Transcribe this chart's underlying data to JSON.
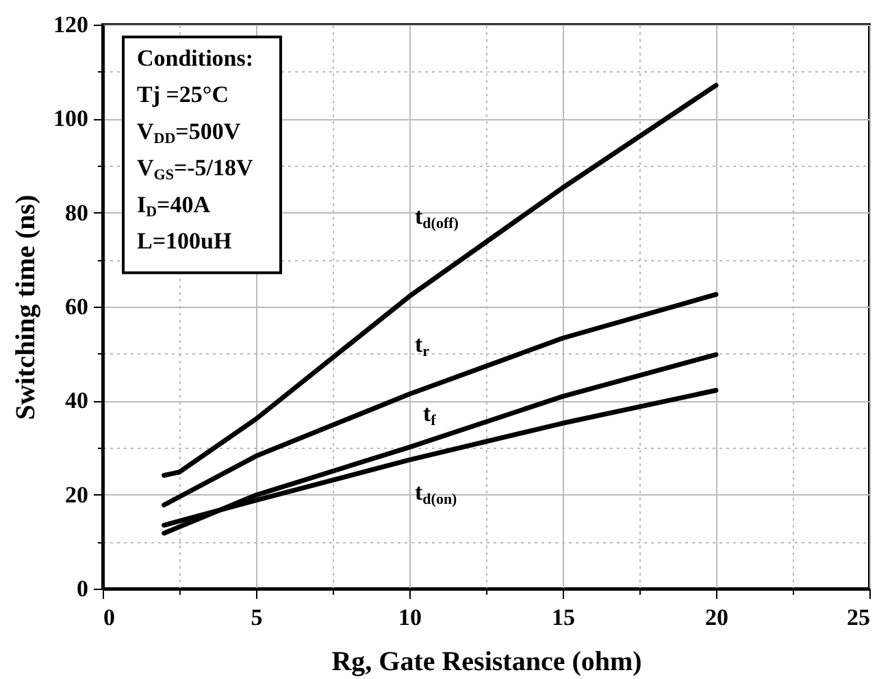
{
  "chart_data": {
    "type": "line",
    "xlabel": "Rg, Gate Resistance (ohm)",
    "ylabel": "Switching time (ns)",
    "x": [
      2,
      2.5,
      5,
      10,
      15,
      20
    ],
    "series": [
      {
        "name": "t$_{d(off)}$",
        "color": "#000000",
        "values": [
          24.1,
          24.8,
          36.1,
          62.2,
          85.3,
          107.1
        ]
      },
      {
        "name": "t$_{r}$",
        "color": "#000000",
        "x": [
          2,
          5,
          10,
          15,
          20
        ],
        "values": [
          17.8,
          28.2,
          41.4,
          53.3,
          62.6
        ]
      },
      {
        "name": "t$_{f}$",
        "color": "#000000",
        "x": [
          2,
          5,
          10,
          15,
          20
        ],
        "values": [
          11.8,
          19.9,
          30.1,
          40.9,
          49.8
        ]
      },
      {
        "name": "t$_{d(on)}$",
        "color": "#000000",
        "x": [
          2,
          5,
          10,
          15,
          20
        ],
        "values": [
          13.5,
          18.8,
          27.4,
          35.2,
          42.2
        ]
      }
    ],
    "xlim": [
      0,
      25
    ],
    "ylim": [
      0,
      120
    ],
    "xticks": [
      0,
      {
        "value": 2.5,
        "label": null
      },
      5,
      {
        "value": 7.5,
        "label": null
      },
      10,
      {
        "value": 12.5,
        "label": null
      },
      15,
      {
        "value": 17.5,
        "label": null
      },
      20,
      {
        "value": 22.5,
        "label": null
      },
      25
    ],
    "yticks": [
      0,
      {
        "value": 10,
        "label": null
      },
      20,
      {
        "value": 30,
        "label": null
      },
      40,
      {
        "value": 50,
        "label": null
      },
      60,
      {
        "value": 70,
        "label": null
      },
      80,
      {
        "value": 90,
        "label": null
      },
      100,
      {
        "value": 110,
        "label": null
      },
      120
    ],
    "grid": true,
    "line_style": "solid",
    "marker": "none",
    "annotations": [
      "Conditions:",
      "Tj =25°C",
      "V$_{DD}$=500V",
      "V$_{GS}$=-5/18V",
      "I$_{D}$=40A",
      "L=100uH"
    ]
  }
}
